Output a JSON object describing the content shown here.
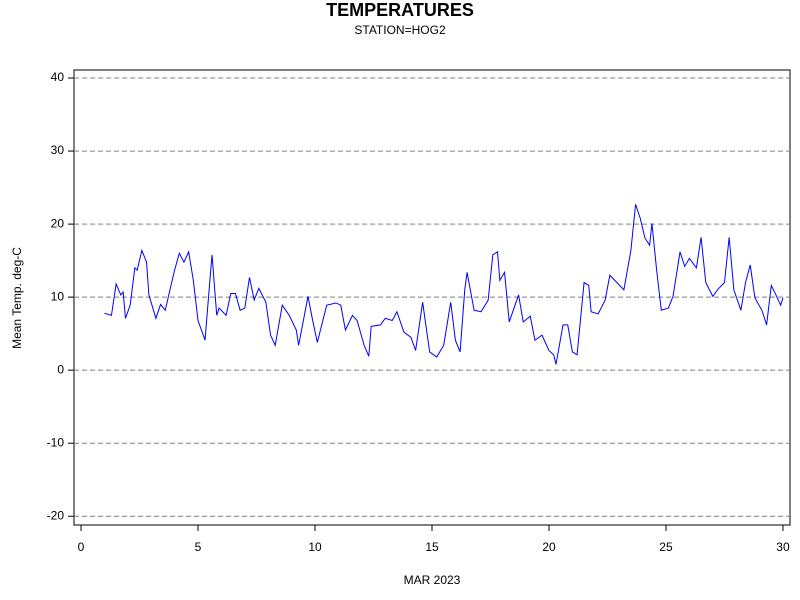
{
  "chart_data": {
    "type": "line",
    "title": "TEMPERATURES",
    "subtitle": "STATION=HOG2",
    "x_label": "MAR 2023",
    "y_label": "Mean Temp. deg-C",
    "xlim": [
      -0.3,
      30.3
    ],
    "ylim": [
      -21.2,
      41.1
    ],
    "xticks": [
      0,
      5,
      10,
      15,
      20,
      25,
      30
    ],
    "yticks": [
      -20,
      -10,
      0,
      10,
      20,
      30,
      40
    ],
    "grid": true,
    "x": [
      1.0,
      1.3,
      1.5,
      1.7,
      1.8,
      1.9,
      2.1,
      2.3,
      2.4,
      2.6,
      2.8,
      2.9,
      3.2,
      3.4,
      3.6,
      3.8,
      4.0,
      4.2,
      4.4,
      4.6,
      4.8,
      5.0,
      5.3,
      5.5,
      5.6,
      5.8,
      5.9,
      6.2,
      6.4,
      6.6,
      6.8,
      7.0,
      7.2,
      7.4,
      7.6,
      7.9,
      8.1,
      8.3,
      8.6,
      8.9,
      9.2,
      9.3,
      9.7,
      9.9,
      10.1,
      10.5,
      10.9,
      11.1,
      11.3,
      11.6,
      11.8,
      12.1,
      12.3,
      12.4,
      12.8,
      13.0,
      13.3,
      13.5,
      13.8,
      14.1,
      14.3,
      14.6,
      14.9,
      15.2,
      15.5,
      15.8,
      16.0,
      16.2,
      16.4,
      16.5,
      16.8,
      17.1,
      17.4,
      17.6,
      17.8,
      17.9,
      18.1,
      18.3,
      18.7,
      18.9,
      19.2,
      19.4,
      19.7,
      20.0,
      20.2,
      20.3,
      20.6,
      20.8,
      21.0,
      21.2,
      21.5,
      21.7,
      21.8,
      22.1,
      22.4,
      22.6,
      22.9,
      23.2,
      23.5,
      23.7,
      23.9,
      24.1,
      24.3,
      24.4,
      24.6,
      24.8,
      25.1,
      25.3,
      25.6,
      25.8,
      26.0,
      26.3,
      26.5,
      26.7,
      27.0,
      27.2,
      27.5,
      27.7,
      27.9,
      28.2,
      28.4,
      28.6,
      28.8,
      29.1,
      29.3,
      29.5,
      29.7,
      29.9,
      30.0
    ],
    "series": [
      {
        "color": "#0000ff",
        "values": [
          7.8,
          7.5,
          11.8,
          10.3,
          10.7,
          7.1,
          8.9,
          14,
          13.7,
          16.4,
          14.8,
          10.3,
          7.1,
          9,
          8.2,
          11,
          13.7,
          16,
          14.8,
          16.2,
          12.3,
          6.8,
          4.1,
          12,
          15.8,
          7.5,
          8.5,
          7.5,
          10.5,
          10.5,
          8.2,
          8.5,
          12.7,
          9.6,
          11.2,
          9.3,
          4.8,
          3.4,
          8.9,
          7.5,
          5.5,
          3.4,
          10.1,
          6.8,
          3.8,
          8.9,
          9.2,
          8.9,
          5.5,
          7.5,
          6.8,
          3.4,
          1.9,
          6,
          6.2,
          7.1,
          6.8,
          8,
          5.2,
          4.5,
          2.7,
          9.3,
          2.5,
          1.8,
          3.4,
          9.3,
          4.1,
          2.5,
          11,
          13.4,
          8.2,
          8,
          9.6,
          15.8,
          16.2,
          12.3,
          13.4,
          6.6,
          10.3,
          6.6,
          7.4,
          4.1,
          4.8,
          2.7,
          2.1,
          0.8,
          6.2,
          6.2,
          2.5,
          2.1,
          12,
          11.6,
          8,
          7.7,
          9.6,
          13,
          12,
          11,
          16.4,
          22.7,
          20.8,
          18.1,
          17.1,
          20.1,
          13.7,
          8.2,
          8.5,
          10.1,
          16.2,
          14.2,
          15.3,
          14,
          18.2,
          12,
          10.1,
          11,
          12,
          18.2,
          11,
          8.2,
          12,
          14.4,
          9.9,
          8.2,
          6.2,
          11.6,
          10.3,
          8.9,
          9.9
        ]
      }
    ]
  }
}
